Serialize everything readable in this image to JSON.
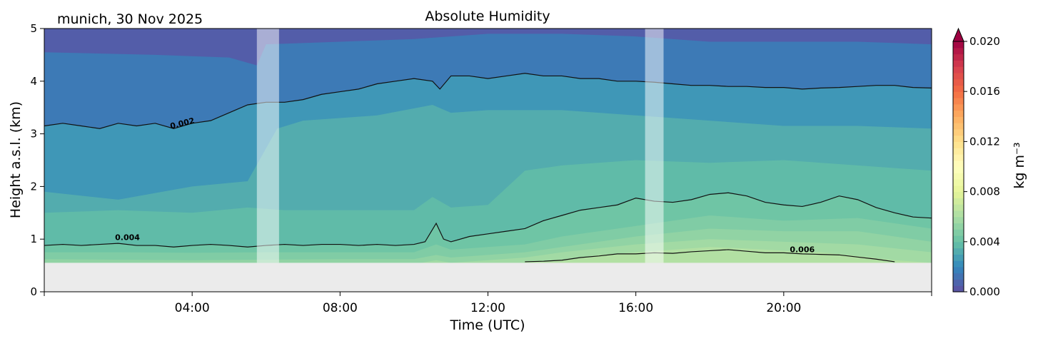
{
  "chart_data": {
    "type": "heatmap",
    "subtype": "filled-contour",
    "location_date": "munich, 30 Nov 2025",
    "title": "Absolute Humidity",
    "xlabel": "Time (UTC)",
    "ylabel": "Height a.s.l. (km)",
    "xlim": [
      0,
      24
    ],
    "ylim": [
      0,
      5
    ],
    "x_ticks": [
      {
        "value": 4,
        "label": "04:00"
      },
      {
        "value": 8,
        "label": "08:00"
      },
      {
        "value": 12,
        "label": "12:00"
      },
      {
        "value": 16,
        "label": "16:00"
      },
      {
        "value": 20,
        "label": "20:00"
      }
    ],
    "y_ticks": [
      {
        "value": 0,
        "label": "0"
      },
      {
        "value": 1,
        "label": "1"
      },
      {
        "value": 2,
        "label": "2"
      },
      {
        "value": 3,
        "label": "3"
      },
      {
        "value": 4,
        "label": "4"
      },
      {
        "value": 5,
        "label": "5"
      }
    ],
    "colorbar": {
      "label": "kg m⁻³",
      "range": [
        0,
        0.02
      ],
      "extend": "max",
      "colormap": "Spectral_r",
      "ticks": [
        {
          "value": 0.0,
          "label": "0.000"
        },
        {
          "value": 0.004,
          "label": "0.004"
        },
        {
          "value": 0.008,
          "label": "0.008"
        },
        {
          "value": 0.012,
          "label": "0.012"
        },
        {
          "value": 0.016,
          "label": "0.016"
        },
        {
          "value": 0.02,
          "label": "0.020"
        }
      ]
    },
    "no_data_below_km": 0.55,
    "no_data_color": "#ebebeb",
    "gaps_hours": [
      [
        5.75,
        6.35
      ],
      [
        16.25,
        16.75
      ]
    ],
    "band_boundaries": [
      {
        "level": 0.001,
        "x": [
          0,
          3,
          5,
          5.75,
          6,
          8,
          10,
          12,
          14,
          16,
          18,
          20,
          22,
          24
        ],
        "y": [
          4.55,
          4.5,
          4.45,
          4.3,
          4.7,
          4.75,
          4.8,
          4.9,
          4.9,
          4.85,
          4.75,
          4.75,
          4.75,
          4.7
        ]
      },
      {
        "level": 0.002,
        "x": [
          0,
          0.5,
          1,
          1.5,
          2,
          2.5,
          3,
          3.5,
          4,
          4.5,
          5,
          5.5,
          6,
          6.5,
          7,
          7.5,
          8,
          8.5,
          9,
          9.5,
          10,
          10.5,
          10.7,
          11,
          11.5,
          12,
          12.5,
          13,
          13.5,
          14,
          14.5,
          15,
          15.5,
          16,
          16.5,
          17,
          17.5,
          18,
          18.5,
          19,
          19.5,
          20,
          20.5,
          21,
          21.5,
          22,
          22.5,
          23,
          23.5,
          24
        ],
        "y": [
          3.15,
          3.2,
          3.15,
          3.1,
          3.2,
          3.15,
          3.2,
          3.1,
          3.2,
          3.25,
          3.4,
          3.55,
          3.6,
          3.6,
          3.65,
          3.75,
          3.8,
          3.85,
          3.95,
          4.0,
          4.05,
          4.0,
          3.85,
          4.1,
          4.1,
          4.05,
          4.1,
          4.15,
          4.1,
          4.1,
          4.05,
          4.05,
          4.0,
          4.0,
          3.98,
          3.95,
          3.92,
          3.92,
          3.9,
          3.9,
          3.88,
          3.88,
          3.85,
          3.87,
          3.88,
          3.9,
          3.92,
          3.92,
          3.88,
          3.87
        ]
      },
      {
        "level": 0.003,
        "x": [
          0,
          2,
          4,
          5.5,
          6.3,
          7,
          9,
          10.5,
          11,
          12,
          14,
          16,
          18,
          20,
          22,
          24
        ],
        "y": [
          1.9,
          1.75,
          2.0,
          2.1,
          3.1,
          3.25,
          3.35,
          3.55,
          3.4,
          3.45,
          3.45,
          3.35,
          3.25,
          3.15,
          3.15,
          3.1
        ]
      },
      {
        "level": 0.0035,
        "x": [
          0,
          2,
          4,
          5.5,
          6.5,
          8,
          10,
          10.5,
          11,
          12,
          13,
          14,
          16,
          18,
          20,
          22,
          24
        ],
        "y": [
          1.5,
          1.55,
          1.5,
          1.6,
          1.55,
          1.55,
          1.55,
          1.8,
          1.6,
          1.65,
          2.3,
          2.4,
          2.5,
          2.45,
          2.5,
          2.4,
          2.3
        ]
      },
      {
        "level": 0.004,
        "x": [
          0,
          0.5,
          1,
          1.5,
          2,
          2.5,
          3,
          3.5,
          4,
          4.5,
          5,
          5.5,
          6,
          6.5,
          7,
          7.5,
          8,
          8.5,
          9,
          9.5,
          10,
          10.3,
          10.6,
          10.8,
          11,
          11.5,
          12,
          12.5,
          13,
          13.5,
          14,
          14.5,
          15,
          15.5,
          16,
          16.5,
          17,
          17.5,
          18,
          18.5,
          19,
          19.5,
          20,
          20.5,
          21,
          21.5,
          22,
          22.5,
          23,
          23.5,
          24
        ],
        "y": [
          0.88,
          0.9,
          0.88,
          0.9,
          0.92,
          0.88,
          0.88,
          0.85,
          0.88,
          0.9,
          0.88,
          0.85,
          0.88,
          0.9,
          0.88,
          0.9,
          0.9,
          0.88,
          0.9,
          0.88,
          0.9,
          0.95,
          1.3,
          1.0,
          0.95,
          1.05,
          1.1,
          1.15,
          1.2,
          1.35,
          1.45,
          1.55,
          1.6,
          1.65,
          1.78,
          1.72,
          1.7,
          1.75,
          1.85,
          1.88,
          1.82,
          1.7,
          1.65,
          1.62,
          1.7,
          1.82,
          1.75,
          1.6,
          1.5,
          1.42,
          1.4
        ]
      },
      {
        "level": 0.0045,
        "x": [
          0,
          2,
          4,
          6,
          8,
          10,
          10.6,
          11,
          12,
          13,
          14,
          16,
          18,
          20,
          22,
          24
        ],
        "y": [
          0.75,
          0.75,
          0.74,
          0.75,
          0.75,
          0.75,
          0.9,
          0.8,
          0.85,
          0.9,
          1.05,
          1.25,
          1.45,
          1.35,
          1.4,
          1.2
        ]
      },
      {
        "level": 0.005,
        "x": [
          0,
          4,
          8,
          10,
          10.6,
          11,
          12,
          13,
          14,
          16,
          18,
          20,
          22,
          24
        ],
        "y": [
          0.62,
          0.6,
          0.62,
          0.62,
          0.7,
          0.65,
          0.7,
          0.75,
          0.85,
          1.05,
          1.2,
          1.15,
          1.15,
          0.95
        ]
      },
      {
        "level": 0.0055,
        "x": [
          10.2,
          10.6,
          11,
          12,
          13,
          14,
          16,
          18,
          20,
          22,
          24
        ],
        "y": [
          0.55,
          0.6,
          0.55,
          0.6,
          0.65,
          0.75,
          0.9,
          1.0,
          0.95,
          0.9,
          0.75
        ]
      },
      {
        "level": 0.006,
        "x": [
          13,
          14,
          15,
          16,
          17,
          18,
          19,
          20,
          21,
          22,
          23,
          24
        ],
        "y": [
          0.56,
          0.6,
          0.7,
          0.75,
          0.8,
          0.85,
          0.82,
          0.78,
          0.75,
          0.68,
          0.6,
          0.55
        ]
      }
    ],
    "contour_lines": [
      {
        "level": 0.002,
        "label": "0.002",
        "label_at": [
          3.75,
          3.15
        ],
        "label_rotation": -14
      },
      {
        "level": 0.004,
        "label": "0.004",
        "label_at": [
          2.25,
          0.98
        ],
        "label_rotation": 0
      },
      {
        "level": 0.006,
        "label": "0.006",
        "label_at": [
          20.5,
          0.75
        ],
        "label_rotation": 0,
        "x": [
          13,
          13.5,
          14,
          14.5,
          15,
          15.5,
          16,
          16.5,
          17,
          17.5,
          18,
          18.5,
          19,
          19.5,
          20,
          20.5,
          21,
          21.5,
          22,
          22.5,
          23
        ],
        "y": [
          0.57,
          0.58,
          0.6,
          0.65,
          0.68,
          0.72,
          0.72,
          0.74,
          0.73,
          0.76,
          0.78,
          0.8,
          0.77,
          0.74,
          0.74,
          0.72,
          0.71,
          0.7,
          0.66,
          0.62,
          0.57
        ]
      }
    ]
  }
}
